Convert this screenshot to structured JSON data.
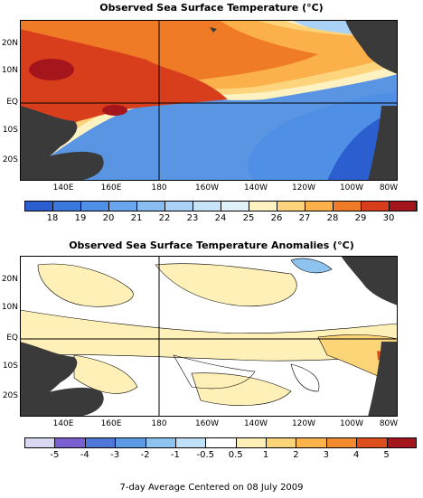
{
  "top_panel": {
    "title": "Observed Sea Surface Temperature (°C)",
    "lat_labels": [
      "20N",
      "10N",
      "EQ",
      "10S",
      "20S"
    ],
    "lon_labels": [
      "140E",
      "160E",
      "180",
      "160W",
      "140W",
      "120W",
      "100W",
      "80W"
    ],
    "colorbar": {
      "labels": [
        "18",
        "19",
        "20",
        "21",
        "22",
        "23",
        "24",
        "25",
        "26",
        "27",
        "28",
        "29",
        "30"
      ],
      "colors": [
        "#2b5fd0",
        "#3a78dd",
        "#4f8fe6",
        "#6aa6ee",
        "#89bdf2",
        "#a9d2f6",
        "#c6e3f8",
        "#e0f0f7",
        "#fff2c2",
        "#fdd47c",
        "#fbb04a",
        "#f07b26",
        "#d83e1c",
        "#a5161c"
      ]
    }
  },
  "bottom_panel": {
    "title": "Observed Sea Surface Temperature Anomalies (°C)",
    "lat_labels": [
      "20N",
      "10N",
      "EQ",
      "10S",
      "20S"
    ],
    "lon_labels": [
      "140E",
      "160E",
      "180",
      "160W",
      "140W",
      "120W",
      "100W",
      "80W"
    ],
    "colorbar": {
      "labels": [
        "-5",
        "-4",
        "-3",
        "-2",
        "-1",
        "-0.5",
        "0.5",
        "1",
        "2",
        "3",
        "4",
        "5"
      ],
      "colors": [
        "#d8d8f2",
        "#7a5fd0",
        "#5077d8",
        "#5c9ae4",
        "#8ec2ef",
        "#bfe0f7",
        "#ffffff",
        "#fff0b8",
        "#fdd579",
        "#fbb34c",
        "#f28a2e",
        "#de4f1e",
        "#a5161c"
      ]
    }
  },
  "footer": "7-day Average Centered on 08 July 2009"
}
